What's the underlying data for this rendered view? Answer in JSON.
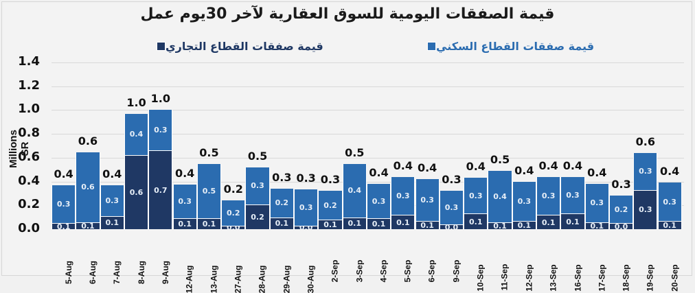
{
  "chart_data": {
    "type": "bar",
    "stacked": true,
    "title": "قيمة الصفقات اليومية للسوق العقارية لآخر 30يوم عمل",
    "xlabel": "",
    "ylabel": "Millions SR",
    "ylim": [
      0,
      1.4
    ],
    "yticks": [
      "0.0",
      "0.2",
      "0.4",
      "0.6",
      "0.8",
      "1.0",
      "1.2",
      "1.4"
    ],
    "grid": true,
    "legend_position": "top",
    "categories": [
      "5-Aug",
      "6-Aug",
      "7-Aug",
      "8-Aug",
      "9-Aug",
      "12-Aug",
      "13-Aug",
      "27-Aug",
      "28-Aug",
      "29-Aug",
      "30-Aug",
      "2-Sep",
      "3-Sep",
      "4-Sep",
      "5-Sep",
      "6-Sep",
      "9-Sep",
      "10-Sep",
      "11-Sep",
      "12-Sep",
      "13-Sep",
      "16-Sep",
      "17-Sep",
      "18-Sep",
      "19-Sep",
      "20-Sep"
    ],
    "series": [
      {
        "name": "قيمة صفقات القطاع التجاري",
        "color": "#1f3864",
        "values": [
          0.05,
          0.06,
          0.11,
          0.62,
          0.66,
          0.09,
          0.09,
          0.03,
          0.21,
          0.1,
          0.03,
          0.08,
          0.1,
          0.09,
          0.12,
          0.07,
          0.04,
          0.13,
          0.06,
          0.07,
          0.12,
          0.13,
          0.06,
          0.05,
          0.33,
          0.07
        ],
        "labels": [
          "0.1",
          "0.1",
          "0.1",
          "0.6",
          "0.7",
          "0.1",
          "0.1",
          "0.0",
          "0.2",
          "0.1",
          "0.0",
          "0.1",
          "0.1",
          "0.1",
          "0.1",
          "0.1",
          "0.0",
          "0.1",
          "0.1",
          "0.1",
          "0.1",
          "0.1",
          "0.1",
          "0.0",
          "0.3",
          "0.1"
        ]
      },
      {
        "name": "قيمة صفقات القطاع السكني",
        "color": "#2b6cb0",
        "values": [
          0.32,
          0.585,
          0.26,
          0.35,
          0.34,
          0.285,
          0.46,
          0.21,
          0.31,
          0.24,
          0.305,
          0.24,
          0.45,
          0.29,
          0.32,
          0.35,
          0.28,
          0.3,
          0.43,
          0.33,
          0.32,
          0.31,
          0.32,
          0.23,
          0.31,
          0.32
        ],
        "labels": [
          "0.3",
          "0.6",
          "0.3",
          "0.4",
          "0.3",
          "0.3",
          "0.5",
          "0.2",
          "0.3",
          "0.2",
          "0.3",
          "0.2",
          "0.4",
          "0.3",
          "0.3",
          "0.3",
          "0.3",
          "0.3",
          "0.4",
          "0.3",
          "0.3",
          "0.3",
          "0.3",
          "0.2",
          "0.3",
          "0.3"
        ]
      }
    ],
    "totals": [
      "0.4",
      "0.6",
      "0.4",
      "1.0",
      "1.0",
      "0.4",
      "0.5",
      "0.2",
      "0.5",
      "0.3",
      "0.3",
      "0.3",
      "0.5",
      "0.4",
      "0.4",
      "0.4",
      "0.3",
      "0.4",
      "0.5",
      "0.4",
      "0.4",
      "0.4",
      "0.4",
      "0.3",
      "0.6",
      "0.4"
    ]
  },
  "legend": {
    "commercial": "قيمة صفقات القطاع التجاري",
    "residential": "قيمة صفقات القطاع السكني"
  },
  "colors": {
    "commercial": "#1f3864",
    "residential": "#2b6cb0",
    "residential_legend_text": "#2b6cb0",
    "commercial_legend_text": "#1f3864"
  }
}
